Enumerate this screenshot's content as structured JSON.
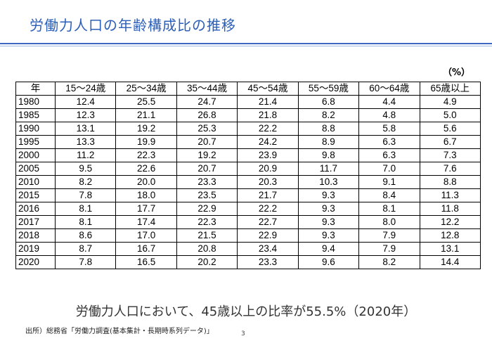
{
  "title": "労働力人口の年齢構成比の推移",
  "unit": "（%）",
  "table": {
    "headers": [
      "年",
      "15～24歳",
      "25～34歳",
      "35～44歳",
      "45～54歳",
      "55～59歳",
      "60～64歳",
      "65歳以上"
    ],
    "rows": [
      [
        "1980",
        "12.4",
        "25.5",
        "24.7",
        "21.4",
        "6.8",
        "4.4",
        "4.9"
      ],
      [
        "1985",
        "12.3",
        "21.1",
        "26.8",
        "21.8",
        "8.2",
        "4.8",
        "5.0"
      ],
      [
        "1990",
        "13.1",
        "19.2",
        "25.3",
        "22.2",
        "8.8",
        "5.8",
        "5.6"
      ],
      [
        "1995",
        "13.3",
        "19.9",
        "20.7",
        "24.2",
        "8.9",
        "6.3",
        "6.7"
      ],
      [
        "2000",
        "11.2",
        "22.3",
        "19.2",
        "23.9",
        "9.8",
        "6.3",
        "7.3"
      ],
      [
        "2005",
        "9.5",
        "22.6",
        "20.7",
        "20.9",
        "11.7",
        "7.0",
        "7.6"
      ],
      [
        "2010",
        "8.2",
        "20.0",
        "23.3",
        "20.3",
        "10.3",
        "9.1",
        "8.8"
      ],
      [
        "2015",
        "7.8",
        "18.0",
        "23.5",
        "21.7",
        "9.3",
        "8.4",
        "11.3"
      ],
      [
        "2016",
        "8.1",
        "17.7",
        "22.9",
        "22.2",
        "9.3",
        "8.1",
        "11.8"
      ],
      [
        "2017",
        "8.1",
        "17.4",
        "22.3",
        "22.7",
        "9.3",
        "8.0",
        "12.2"
      ],
      [
        "2018",
        "8.6",
        "17.0",
        "21.5",
        "22.9",
        "9.3",
        "7.9",
        "12.8"
      ],
      [
        "2019",
        "8.7",
        "16.7",
        "20.8",
        "23.4",
        "9.4",
        "7.9",
        "13.1"
      ],
      [
        "2020",
        "7.8",
        "16.5",
        "20.2",
        "23.3",
        "9.6",
        "8.2",
        "14.4"
      ]
    ]
  },
  "summary": "労働力人口において、45歳以上の比率が55.5%（2020年）",
  "source": "出所）総務省「労働力調査(基本集計・長期時系列データ)」",
  "page_number": "3",
  "colors": {
    "title": "#2b5fb8",
    "rule": "#3a69c4"
  }
}
